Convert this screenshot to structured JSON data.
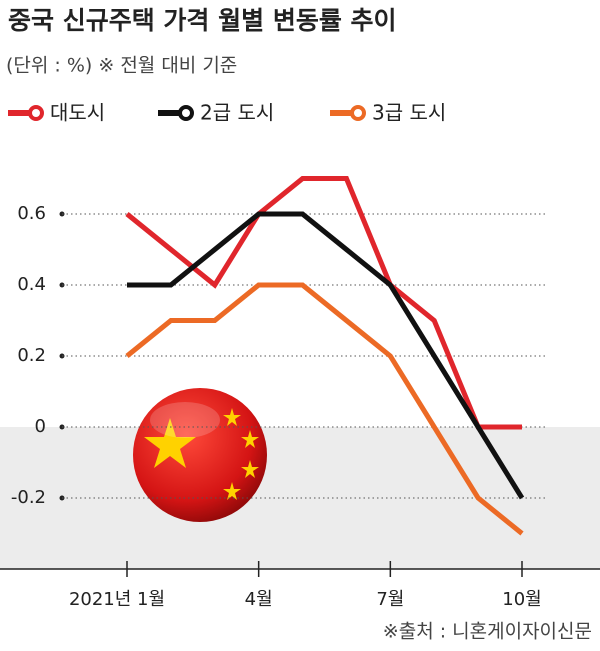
{
  "chart_data": {
    "type": "line",
    "title": "중국 신규주택 가격 월별 변동률 추이",
    "subtitle": "(단위 : %)  ※ 전월 대비 기준",
    "source": "※출처 : 니혼게이자이신문",
    "categories": [
      "2021년 1월",
      null,
      null,
      "4월",
      null,
      null,
      "7월",
      null,
      null,
      "10월"
    ],
    "series": [
      {
        "name": "대도시",
        "color": "#e0262c",
        "values": [
          0.6,
          0.5,
          0.4,
          0.6,
          0.7,
          0.7,
          0.4,
          0.3,
          0,
          0
        ]
      },
      {
        "name": "2급 도시",
        "color": "#111111",
        "values": [
          0.4,
          0.4,
          0.5,
          0.6,
          0.6,
          0.5,
          0.4,
          0.2,
          0,
          -0.2
        ]
      },
      {
        "name": "3급 도시",
        "color": "#ec6a25",
        "values": [
          0.2,
          0.3,
          0.3,
          0.4,
          0.4,
          0.3,
          0.2,
          0,
          -0.2,
          -0.3
        ]
      }
    ],
    "ylim": [
      -0.4,
      0.7
    ],
    "yticks": [
      0.6,
      0.4,
      0.2,
      0,
      -0.2
    ],
    "grid": true
  }
}
